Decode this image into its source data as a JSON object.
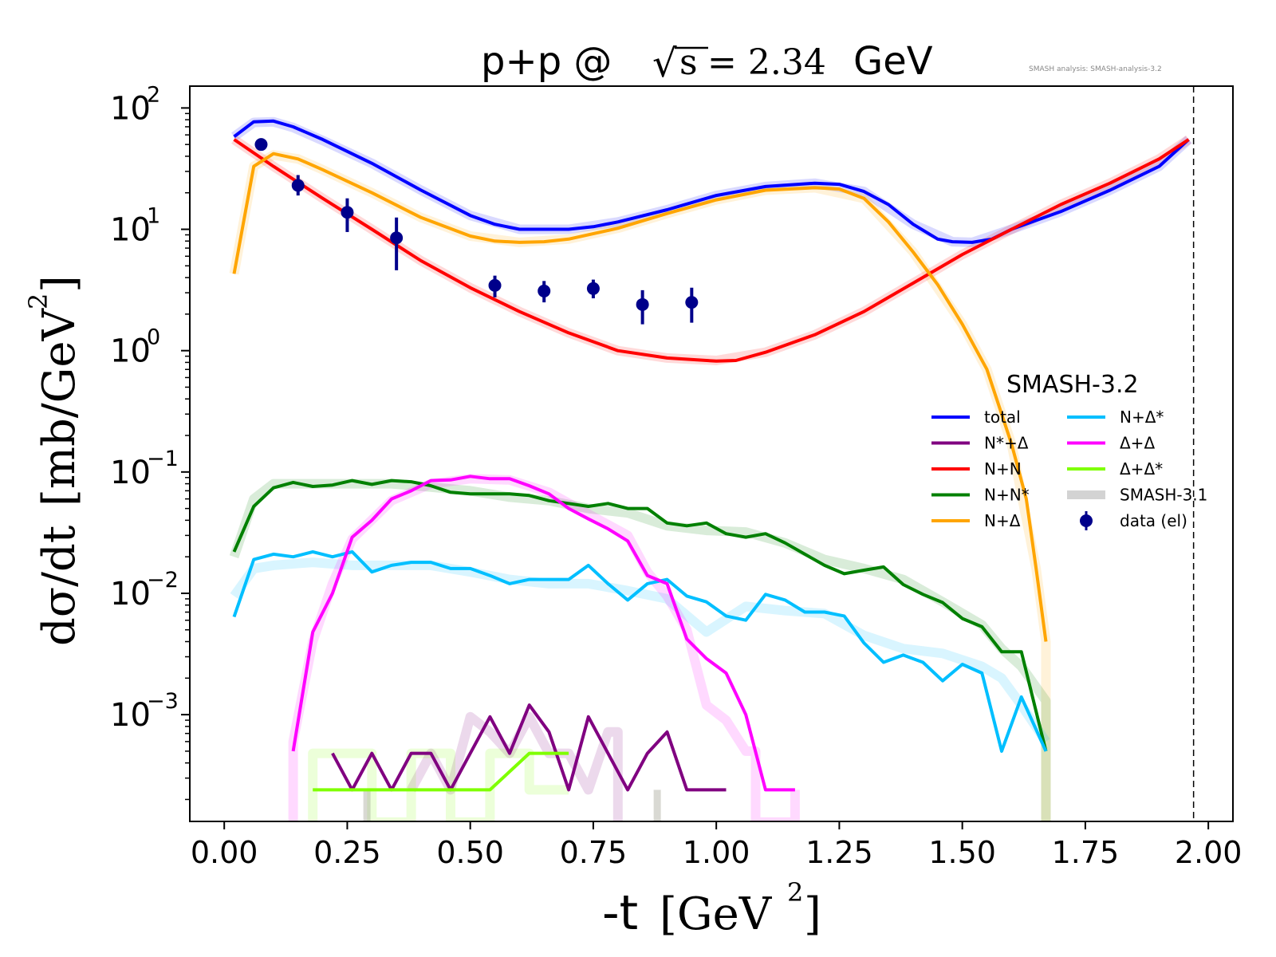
{
  "chart_data": {
    "type": "line",
    "title": "p+p @ √s = 2.34 GeV",
    "title_parts": {
      "reaction": "p+p @",
      "sqrt": "√",
      "s_symbol": "s",
      "equals_value": "= 2.34",
      "unit": "GeV"
    },
    "watermark": "SMASH analysis: SMASH-analysis-3.2",
    "xlabel": "-t [GeV²]",
    "xlabel_parts": {
      "main": "-t",
      "unit": "[GeV",
      "unit_exp": "2",
      "unit_close": "]"
    },
    "ylabel": "dσ/dt [mb/GeV²]",
    "ylabel_parts": {
      "main": "dσ/dt",
      "unit": "[mb/GeV",
      "unit_exp": "2",
      "unit_close": "]"
    },
    "xlim": [
      -0.07,
      2.05
    ],
    "ylim_log10": [
      -3.88,
      2.18
    ],
    "y_scale": "log",
    "grid": false,
    "x_ticks": [
      0.0,
      0.25,
      0.5,
      0.75,
      1.0,
      1.25,
      1.5,
      1.75,
      2.0
    ],
    "x_tick_labels": [
      "0.00",
      "0.25",
      "0.50",
      "0.75",
      "1.00",
      "1.25",
      "1.50",
      "1.75",
      "2.00"
    ],
    "y_tick_exponents": [
      -3,
      -2,
      -1,
      0,
      1,
      2
    ],
    "y_tick_base": "10",
    "y_tick_exp_labels": [
      "−3",
      "−2",
      "−1",
      "0",
      "1",
      "2"
    ],
    "vline_x": 1.97,
    "legend": {
      "title": "SMASH-3.2",
      "placement": "center-right",
      "entries": [
        {
          "label": "total",
          "color": "#0000ff",
          "kind": "line"
        },
        {
          "label": "N*+Δ",
          "color": "#800080",
          "kind": "line"
        },
        {
          "label": "N+N",
          "color": "#ff0000",
          "kind": "line"
        },
        {
          "label": "N+N*",
          "color": "#008000",
          "kind": "line"
        },
        {
          "label": "N+Δ",
          "color": "#ffa500",
          "kind": "line"
        },
        {
          "label": "N+Δ*",
          "color": "#00bfff",
          "kind": "line"
        },
        {
          "label": "Δ+Δ",
          "color": "#ff00ff",
          "kind": "line"
        },
        {
          "label": "Δ+Δ*",
          "color": "#7fff00",
          "kind": "line"
        },
        {
          "label": "SMASH-3.1",
          "color": "#d3d3d3",
          "kind": "band"
        },
        {
          "label": "data (el)",
          "color": "#00008b",
          "kind": "marker"
        }
      ]
    },
    "series": [
      {
        "name": "total",
        "color": "#0000ff",
        "width": 4,
        "x": [
          0.02,
          0.06,
          0.1,
          0.14,
          0.2,
          0.3,
          0.4,
          0.5,
          0.55,
          0.6,
          0.65,
          0.7,
          0.75,
          0.8,
          0.9,
          1.0,
          1.1,
          1.2,
          1.25,
          1.3,
          1.35,
          1.4,
          1.45,
          1.48,
          1.52,
          1.56,
          1.6,
          1.7,
          1.8,
          1.9,
          1.96
        ],
        "y": [
          58,
          77,
          78,
          70,
          55,
          35,
          21,
          13,
          11,
          10,
          10,
          10,
          10.5,
          11.5,
          14.5,
          19,
          22.5,
          24,
          23.5,
          20.5,
          16,
          11,
          8.3,
          7.9,
          7.8,
          8.3,
          10,
          14,
          21,
          33,
          55
        ]
      },
      {
        "name": "N+N",
        "color": "#ff0000",
        "width": 4,
        "x": [
          0.02,
          0.1,
          0.2,
          0.3,
          0.4,
          0.5,
          0.6,
          0.7,
          0.8,
          0.9,
          1.0,
          1.04,
          1.1,
          1.2,
          1.3,
          1.4,
          1.5,
          1.6,
          1.7,
          1.8,
          1.9,
          1.96
        ],
        "y": [
          55,
          33,
          18,
          10,
          5.5,
          3.3,
          2.1,
          1.4,
          1.0,
          0.87,
          0.82,
          0.83,
          0.97,
          1.35,
          2.1,
          3.6,
          6.2,
          10,
          16,
          24,
          38,
          55
        ]
      },
      {
        "name": "N+Δ",
        "color": "#ffa500",
        "width": 4,
        "x": [
          0.02,
          0.06,
          0.1,
          0.15,
          0.2,
          0.3,
          0.4,
          0.5,
          0.55,
          0.6,
          0.65,
          0.7,
          0.8,
          0.9,
          1.0,
          1.1,
          1.2,
          1.25,
          1.3,
          1.35,
          1.4,
          1.45,
          1.5,
          1.55,
          1.6,
          1.63,
          1.65,
          1.67
        ],
        "y": [
          4.3,
          33,
          42,
          38,
          31,
          20,
          12.5,
          8.8,
          8.0,
          7.8,
          7.9,
          8.3,
          10.2,
          13.5,
          17.5,
          21,
          22,
          21.5,
          18,
          11.5,
          6.5,
          3.5,
          1.65,
          0.7,
          0.17,
          0.06,
          0.016,
          0.004
        ]
      },
      {
        "name": "N+N*",
        "color": "#008000",
        "width": 4,
        "x": [
          0.02,
          0.06,
          0.1,
          0.14,
          0.18,
          0.22,
          0.26,
          0.3,
          0.34,
          0.38,
          0.42,
          0.46,
          0.5,
          0.54,
          0.58,
          0.62,
          0.66,
          0.7,
          0.74,
          0.78,
          0.82,
          0.86,
          0.9,
          0.94,
          0.98,
          1.02,
          1.06,
          1.1,
          1.14,
          1.18,
          1.22,
          1.26,
          1.3,
          1.34,
          1.38,
          1.42,
          1.46,
          1.5,
          1.54,
          1.58,
          1.62,
          1.67
        ],
        "y": [
          0.022,
          0.052,
          0.074,
          0.082,
          0.076,
          0.078,
          0.085,
          0.079,
          0.085,
          0.083,
          0.077,
          0.068,
          0.066,
          0.066,
          0.066,
          0.064,
          0.058,
          0.055,
          0.052,
          0.055,
          0.05,
          0.05,
          0.038,
          0.036,
          0.038,
          0.031,
          0.029,
          0.031,
          0.026,
          0.021,
          0.017,
          0.0145,
          0.0155,
          0.0165,
          0.0118,
          0.0098,
          0.0084,
          0.0062,
          0.0053,
          0.0033,
          0.0033,
          0.0005
        ]
      },
      {
        "name": "N+Δ*",
        "color": "#00bfff",
        "width": 4,
        "x": [
          0.02,
          0.06,
          0.1,
          0.14,
          0.18,
          0.22,
          0.26,
          0.3,
          0.34,
          0.38,
          0.42,
          0.46,
          0.5,
          0.54,
          0.58,
          0.62,
          0.66,
          0.7,
          0.74,
          0.78,
          0.82,
          0.86,
          0.9,
          0.94,
          0.98,
          1.02,
          1.06,
          1.1,
          1.14,
          1.18,
          1.22,
          1.26,
          1.3,
          1.34,
          1.38,
          1.42,
          1.46,
          1.5,
          1.54,
          1.58,
          1.62,
          1.67
        ],
        "y": [
          0.0064,
          0.019,
          0.021,
          0.02,
          0.022,
          0.02,
          0.022,
          0.015,
          0.017,
          0.018,
          0.018,
          0.016,
          0.016,
          0.014,
          0.012,
          0.013,
          0.013,
          0.013,
          0.017,
          0.012,
          0.0088,
          0.012,
          0.013,
          0.0095,
          0.0085,
          0.0065,
          0.006,
          0.0098,
          0.0088,
          0.007,
          0.007,
          0.0065,
          0.0039,
          0.0027,
          0.0031,
          0.0027,
          0.0019,
          0.0026,
          0.0022,
          0.0005,
          0.0014,
          0.0005
        ]
      },
      {
        "name": "Δ+Δ",
        "color": "#ff00ff",
        "width": 4,
        "x": [
          0.14,
          0.18,
          0.22,
          0.26,
          0.3,
          0.34,
          0.38,
          0.42,
          0.46,
          0.5,
          0.54,
          0.58,
          0.62,
          0.66,
          0.7,
          0.74,
          0.78,
          0.82,
          0.86,
          0.9,
          0.94,
          0.98,
          1.02,
          1.06,
          1.1,
          1.14,
          1.16
        ],
        "y": [
          0.0005,
          0.0048,
          0.01,
          0.029,
          0.04,
          0.06,
          0.07,
          0.085,
          0.086,
          0.092,
          0.088,
          0.088,
          0.077,
          0.066,
          0.05,
          0.041,
          0.034,
          0.027,
          0.014,
          0.012,
          0.0042,
          0.0029,
          0.0022,
          0.001,
          0.00024,
          0.00024,
          0.00024
        ]
      },
      {
        "name": "N*+Δ",
        "color": "#800080",
        "width": 4,
        "x": [
          0.22,
          0.26,
          0.3,
          0.34,
          0.38,
          0.42,
          0.46,
          0.5,
          0.54,
          0.58,
          0.62,
          0.66,
          0.7,
          0.74,
          0.78,
          0.82,
          0.86,
          0.9,
          0.94,
          0.98,
          1.02
        ],
        "y": [
          0.00048,
          0.00024,
          0.00048,
          0.00024,
          0.00048,
          0.00048,
          0.00024,
          0.00048,
          0.00096,
          0.00048,
          0.0012,
          0.00072,
          0.00024,
          0.00096,
          0.00048,
          0.00024,
          0.00048,
          0.00072,
          0.00024,
          0.00024,
          0.00024
        ]
      },
      {
        "name": "Δ+Δ*",
        "color": "#7fff00",
        "width": 4,
        "x": [
          0.18,
          0.54,
          0.62,
          0.7
        ],
        "y": [
          0.00024,
          0.00024,
          0.00048,
          0.00048
        ]
      }
    ],
    "reference_bands": [
      {
        "name": "SMASH-3.1 total",
        "color": "#0000ff",
        "x": [
          0.02,
          0.06,
          0.1,
          0.14,
          0.2,
          0.3,
          0.4,
          0.5,
          0.6,
          0.7,
          0.8,
          0.9,
          1.0,
          1.1,
          1.2,
          1.3,
          1.4,
          1.48,
          1.52,
          1.6,
          1.7,
          1.8,
          1.9,
          1.96
        ],
        "y": [
          58,
          76,
          77,
          69,
          54,
          35,
          21,
          13,
          10,
          10,
          11.5,
          14.5,
          19,
          22.5,
          24,
          20.5,
          11,
          7.9,
          7.8,
          10,
          14,
          21,
          33,
          55
        ]
      },
      {
        "name": "SMASH-3.1 N+N",
        "color": "#ff0000",
        "x": [
          0.02,
          0.1,
          0.2,
          0.3,
          0.4,
          0.5,
          0.6,
          0.7,
          0.8,
          0.9,
          1.0,
          1.1,
          1.2,
          1.3,
          1.4,
          1.5,
          1.6,
          1.7,
          1.8,
          1.9,
          1.96
        ],
        "y": [
          55,
          33,
          18,
          10,
          5.5,
          3.3,
          2.1,
          1.4,
          1.0,
          0.87,
          0.83,
          0.97,
          1.35,
          2.1,
          3.6,
          6.2,
          10,
          16,
          24,
          38,
          55
        ]
      },
      {
        "name": "SMASH-3.1 N+Δ",
        "color": "#ffa500",
        "x": [
          0.02,
          0.06,
          0.1,
          0.15,
          0.2,
          0.3,
          0.4,
          0.5,
          0.6,
          0.7,
          0.8,
          0.9,
          1.0,
          1.1,
          1.2,
          1.3,
          1.4,
          1.5,
          1.55,
          1.6,
          1.65,
          1.67,
          1.67
        ],
        "y": [
          4.3,
          33,
          41,
          38,
          31,
          20,
          12.5,
          8.8,
          7.8,
          8.3,
          10.2,
          13.5,
          17.5,
          21,
          22,
          18,
          6.5,
          1.65,
          0.7,
          0.17,
          0.016,
          0.004,
          0.00013
        ]
      },
      {
        "name": "SMASH-3.1 N+N*",
        "color": "#008000",
        "x": [
          0.02,
          0.06,
          0.1,
          0.18,
          0.26,
          0.34,
          0.42,
          0.5,
          0.58,
          0.66,
          0.74,
          0.82,
          0.9,
          0.98,
          1.06,
          1.14,
          1.22,
          1.3,
          1.38,
          1.46,
          1.54,
          1.58,
          1.62,
          1.67,
          1.67
        ],
        "y": [
          0.02,
          0.06,
          0.08,
          0.08,
          0.08,
          0.08,
          0.075,
          0.07,
          0.062,
          0.058,
          0.05,
          0.046,
          0.036,
          0.033,
          0.032,
          0.026,
          0.019,
          0.016,
          0.013,
          0.0085,
          0.0055,
          0.0035,
          0.0025,
          0.0013,
          0.00013
        ]
      },
      {
        "name": "SMASH-3.1 N+Δ*",
        "color": "#00bfff",
        "x": [
          0.02,
          0.06,
          0.1,
          0.18,
          0.26,
          0.34,
          0.42,
          0.5,
          0.58,
          0.66,
          0.74,
          0.82,
          0.9,
          0.98,
          1.06,
          1.14,
          1.22,
          1.3,
          1.38,
          1.46,
          1.54,
          1.58,
          1.62,
          1.67
        ],
        "y": [
          0.0095,
          0.016,
          0.017,
          0.018,
          0.017,
          0.017,
          0.017,
          0.015,
          0.013,
          0.012,
          0.012,
          0.0105,
          0.009,
          0.0048,
          0.0078,
          0.0072,
          0.0068,
          0.0045,
          0.0035,
          0.0032,
          0.0025,
          0.002,
          0.0012,
          0.0006
        ]
      },
      {
        "name": "SMASH-3.1 Δ+Δ",
        "color": "#ff00ff",
        "x": [
          0.14,
          0.14,
          0.18,
          0.22,
          0.26,
          0.34,
          0.42,
          0.5,
          0.58,
          0.66,
          0.74,
          0.82,
          0.86,
          0.9,
          0.94,
          0.98,
          1.02,
          1.06,
          1.08,
          1.08,
          1.16,
          1.16
        ],
        "y": [
          0.00013,
          0.0006,
          0.004,
          0.012,
          0.028,
          0.058,
          0.08,
          0.088,
          0.086,
          0.068,
          0.045,
          0.03,
          0.015,
          0.0095,
          0.005,
          0.0012,
          0.0009,
          0.0005,
          0.0005,
          0.00013,
          0.00013,
          0.00024
        ]
      },
      {
        "name": "SMASH-3.1 N*+Δ",
        "color": "#800080",
        "x": [
          0.38,
          0.42,
          0.46,
          0.5,
          0.54,
          0.58,
          0.62,
          0.66,
          0.7,
          0.74,
          0.78,
          0.8,
          0.8
        ],
        "y": [
          0.00024,
          0.00048,
          0.00024,
          0.00096,
          0.00072,
          0.00048,
          0.00096,
          0.00048,
          0.00048,
          0.00024,
          0.00072,
          0.00072,
          0.00013
        ]
      },
      {
        "name": "SMASH-3.1 Δ+Δ*",
        "color": "#7fff00",
        "x": [
          0.18,
          0.18,
          0.3,
          0.3,
          0.38,
          0.38,
          0.46,
          0.46,
          0.54,
          0.54,
          0.62,
          0.62,
          0.7
        ],
        "y": [
          0.00013,
          0.00048,
          0.00048,
          0.00013,
          0.00013,
          0.00048,
          0.00048,
          0.00013,
          0.00013,
          0.00048,
          0.00048,
          0.00024,
          0.00024
        ]
      }
    ],
    "gray_spikes": [
      {
        "x": 0.29,
        "y_top": 0.00024
      },
      {
        "x": 0.88,
        "y_top": 0.00024
      }
    ],
    "data_points": [
      {
        "x": 0.075,
        "y": 50,
        "ylo": 50,
        "yhi": 50
      },
      {
        "x": 0.15,
        "y": 23,
        "ylo": 19,
        "yhi": 28
      },
      {
        "x": 0.25,
        "y": 13.8,
        "ylo": 9.5,
        "yhi": 18
      },
      {
        "x": 0.35,
        "y": 8.5,
        "ylo": 4.6,
        "yhi": 12.5
      },
      {
        "x": 0.55,
        "y": 3.45,
        "ylo": 2.75,
        "yhi": 4.15
      },
      {
        "x": 0.65,
        "y": 3.1,
        "ylo": 2.5,
        "yhi": 3.75
      },
      {
        "x": 0.75,
        "y": 3.25,
        "ylo": 2.7,
        "yhi": 3.85
      },
      {
        "x": 0.85,
        "y": 2.4,
        "ylo": 1.65,
        "yhi": 3.15
      },
      {
        "x": 0.95,
        "y": 2.5,
        "ylo": 1.7,
        "yhi": 3.3
      }
    ]
  }
}
